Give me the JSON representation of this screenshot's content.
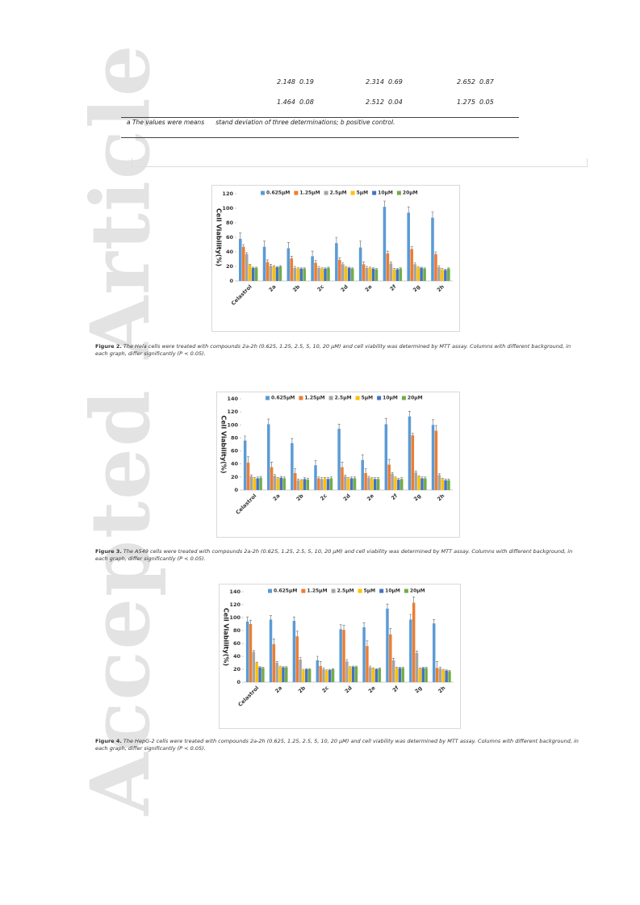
{
  "watermark": "Accepted Article",
  "table": {
    "rows": [
      [
        "2.148",
        "0.19",
        "2.314",
        "0.69",
        "2.652",
        "0.87"
      ],
      [
        "1.464",
        "0.08",
        "2.512",
        "0.04",
        "1.275",
        "0.05"
      ]
    ]
  },
  "footnote": "a The values were means      stand deviation of three determinations; b positive control.",
  "chart_data": [
    {
      "type": "bar",
      "y_label": "Cell Viability(%)",
      "legend": "top",
      "grid": false,
      "label": "Figure 2.",
      "caption": "The Hela cells were treated with compounds 2a-2h (0.625, 1.25, 2.5, 5, 10, 20 µM) and cell viability was determined by MTT assay. Columns with different background, in each graph, differ significantly (P < 0.05).",
      "categories": [
        "Celastrol",
        "2a",
        "2b",
        "2c",
        "2d",
        "2e",
        "2f",
        "2g",
        "2h"
      ],
      "ylim": [
        0,
        120
      ],
      "yticks": [
        0,
        20,
        40,
        60,
        80,
        100,
        120
      ],
      "series": [
        {
          "name": "0.625μM",
          "color": "#5b9bd5",
          "values": [
            58,
            47,
            45,
            34,
            52,
            46,
            102,
            94,
            87
          ],
          "errors": [
            8,
            8,
            8,
            7,
            8,
            9,
            8,
            8,
            8
          ]
        },
        {
          "name": "1.25μM",
          "color": "#ed7d31",
          "values": [
            47,
            26,
            31,
            25,
            29,
            23,
            38,
            44,
            37
          ],
          "errors": [
            3,
            3,
            3,
            3,
            3,
            3,
            3,
            3,
            3
          ]
        },
        {
          "name": "2.5μM",
          "color": "#a5a5a5",
          "values": [
            37,
            21,
            18,
            18,
            23,
            18,
            24,
            23,
            19
          ],
          "errors": [
            2,
            2,
            2,
            2,
            2,
            2,
            2,
            2,
            2
          ]
        },
        {
          "name": "5μM",
          "color": "#ffc000",
          "values": [
            22,
            20,
            17,
            17,
            19,
            18,
            16,
            19,
            16
          ],
          "errors": [
            1,
            1,
            1,
            1,
            1,
            1,
            1,
            1,
            1
          ]
        },
        {
          "name": "10μM",
          "color": "#4472c4",
          "values": [
            18,
            19,
            17,
            17,
            18,
            17,
            16,
            18,
            15
          ],
          "errors": [
            1,
            1,
            1,
            1,
            1,
            1,
            1,
            1,
            1
          ]
        },
        {
          "name": "20μM",
          "color": "#70ad47",
          "values": [
            18,
            20,
            17,
            18,
            17,
            16,
            17,
            17,
            17
          ],
          "errors": [
            1,
            1,
            1,
            1,
            1,
            1,
            1,
            1,
            1
          ]
        }
      ]
    },
    {
      "type": "bar",
      "y_label": "Cell Viability(%)",
      "legend": "top",
      "grid": false,
      "label": "Figure 3.",
      "caption": "The A549 cells were treated with compounds 2a-2h (0.625, 1.25, 2.5, 5, 10, 20 µM) and cell viability was determined by MTT assay. Columns with different background, in each graph, differ significantly (P < 0.05).",
      "categories": [
        "Celastrol",
        "2a",
        "2b",
        "2c",
        "2d",
        "2e",
        "2f",
        "2g",
        "2h"
      ],
      "ylim": [
        0,
        140
      ],
      "yticks": [
        0,
        20,
        40,
        60,
        80,
        100,
        120,
        140
      ],
      "series": [
        {
          "name": "0.625μM",
          "color": "#5b9bd5",
          "values": [
            76,
            101,
            72,
            38,
            94,
            46,
            101,
            113,
            100
          ],
          "errors": [
            7,
            8,
            7,
            7,
            7,
            8,
            9,
            8,
            8
          ]
        },
        {
          "name": "1.25μM",
          "color": "#ed7d31",
          "values": [
            42,
            35,
            26,
            18,
            35,
            26,
            39,
            84,
            91
          ],
          "errors": [
            9,
            8,
            7,
            2,
            8,
            7,
            8,
            3,
            8
          ]
        },
        {
          "name": "2.5μM",
          "color": "#a5a5a5",
          "values": [
            21,
            22,
            15,
            17,
            21,
            19,
            25,
            27,
            23
          ],
          "errors": [
            2,
            2,
            2,
            2,
            2,
            2,
            2,
            2,
            2
          ]
        },
        {
          "name": "5μM",
          "color": "#ffc000",
          "values": [
            18,
            18,
            15,
            18,
            18,
            18,
            19,
            21,
            17
          ],
          "errors": [
            1,
            1,
            1,
            1,
            1,
            1,
            1,
            1,
            1
          ]
        },
        {
          "name": "10μM",
          "color": "#4472c4",
          "values": [
            18,
            19,
            17,
            17,
            18,
            17,
            16,
            18,
            15
          ],
          "errors": [
            2,
            2,
            2,
            2,
            2,
            2,
            2,
            2,
            2
          ]
        },
        {
          "name": "20μM",
          "color": "#70ad47",
          "values": [
            19,
            18,
            16,
            18,
            18,
            17,
            17,
            18,
            15
          ],
          "errors": [
            2,
            2,
            2,
            2,
            2,
            2,
            2,
            2,
            2
          ]
        }
      ]
    },
    {
      "type": "bar",
      "y_label": "Cell Viability(%)",
      "legend": "top",
      "grid": false,
      "label": "Figure 4.",
      "caption": "The HepG-2 cells were treated with compounds 2a-2h (0.625, 1.25, 2.5, 5, 10, 20 µM) and cell viability was determined by MTT assay. Columns with different background, in each graph, differ significantly (P < 0.05).",
      "categories": [
        "Celastrol",
        "2a",
        "2b",
        "2c",
        "2d",
        "2e",
        "2f",
        "2g",
        "2h"
      ],
      "ylim": [
        0,
        140
      ],
      "yticks": [
        0,
        20,
        40,
        60,
        80,
        100,
        120,
        140
      ],
      "series": [
        {
          "name": "0.625μM",
          "color": "#5b9bd5",
          "values": [
            94,
            97,
            95,
            34,
            82,
            85,
            114,
            97,
            91
          ],
          "errors": [
            7,
            6,
            6,
            6,
            7,
            7,
            7,
            8,
            6
          ]
        },
        {
          "name": "1.25μM",
          "color": "#ed7d31",
          "values": [
            90,
            59,
            71,
            25,
            81,
            56,
            74,
            123,
            22
          ],
          "errors": [
            6,
            8,
            8,
            7,
            7,
            8,
            9,
            9,
            10
          ]
        },
        {
          "name": "2.5μM",
          "color": "#a5a5a5",
          "values": [
            47,
            30,
            35,
            20,
            32,
            23,
            34,
            45,
            21
          ],
          "errors": [
            2,
            2,
            3,
            2,
            3,
            2,
            3,
            3,
            2
          ]
        },
        {
          "name": "5μM",
          "color": "#ffc000",
          "values": [
            30,
            24,
            19,
            18,
            23,
            21,
            22,
            21,
            19
          ],
          "errors": [
            1,
            1,
            1,
            1,
            1,
            1,
            1,
            1,
            1
          ]
        },
        {
          "name": "10μM",
          "color": "#4472c4",
          "values": [
            23,
            23,
            20,
            19,
            24,
            20,
            22,
            22,
            18
          ],
          "errors": [
            1,
            1,
            1,
            1,
            1,
            1,
            1,
            1,
            1
          ]
        },
        {
          "name": "20μM",
          "color": "#70ad47",
          "values": [
            22,
            23,
            20,
            20,
            24,
            21,
            22,
            22,
            17
          ],
          "errors": [
            1,
            1,
            1,
            1,
            1,
            1,
            1,
            1,
            1
          ]
        }
      ]
    }
  ]
}
